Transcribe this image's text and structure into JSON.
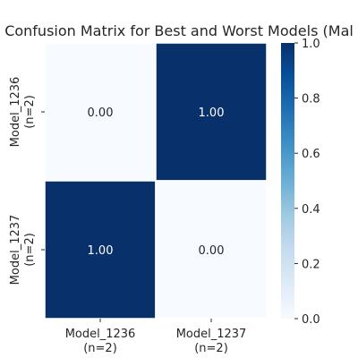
{
  "chart_data": {
    "type": "heatmap",
    "title": "Confusion Matrix for Best and Worst Models (Mal",
    "x_categories": [
      "Model_1236",
      "Model_1237"
    ],
    "x_sublabels": [
      "(n=2)",
      "(n=2)"
    ],
    "y_categories": [
      "Model_1236",
      "Model_1237"
    ],
    "y_sublabels": [
      "(n=2)",
      "(n=2)"
    ],
    "values": [
      [
        0.0,
        1.0
      ],
      [
        1.0,
        0.0
      ]
    ],
    "cell_labels": [
      [
        "0.00",
        "1.00"
      ],
      [
        "1.00",
        "0.00"
      ]
    ],
    "colorbar": {
      "range": [
        0.0,
        1.0
      ],
      "ticks": [
        "0.0",
        "0.2",
        "0.4",
        "0.6",
        "0.8",
        "1.0"
      ],
      "tick_values": [
        0.0,
        0.2,
        0.4,
        0.6,
        0.8,
        1.0
      ]
    },
    "colormap": "Blues",
    "colors": {
      "low": "#f7fbff",
      "high": "#08306b",
      "grid_line": "#ffffff"
    }
  }
}
